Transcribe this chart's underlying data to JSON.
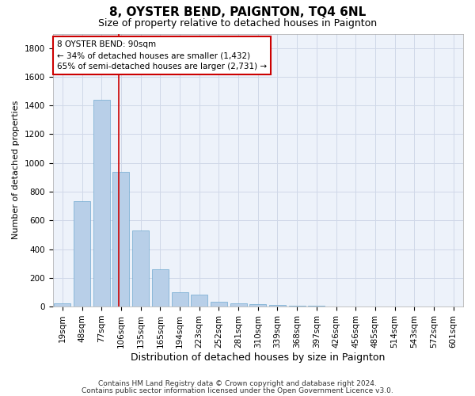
{
  "title": "8, OYSTER BEND, PAIGNTON, TQ4 6NL",
  "subtitle": "Size of property relative to detached houses in Paignton",
  "xlabel": "Distribution of detached houses by size in Paignton",
  "ylabel": "Number of detached properties",
  "footnote1": "Contains HM Land Registry data © Crown copyright and database right 2024.",
  "footnote2": "Contains public sector information licensed under the Open Government Licence v3.0.",
  "categories": [
    "19sqm",
    "48sqm",
    "77sqm",
    "106sqm",
    "135sqm",
    "165sqm",
    "194sqm",
    "223sqm",
    "252sqm",
    "281sqm",
    "310sqm",
    "339sqm",
    "368sqm",
    "397sqm",
    "426sqm",
    "456sqm",
    "485sqm",
    "514sqm",
    "543sqm",
    "572sqm",
    "601sqm"
  ],
  "values": [
    20,
    735,
    1440,
    940,
    530,
    260,
    100,
    85,
    35,
    20,
    15,
    10,
    6,
    5,
    2,
    2,
    1,
    1,
    1,
    1,
    1
  ],
  "bar_color": "#b8cfe8",
  "bar_edge_color": "#6fa8d0",
  "grid_color": "#d0d8e8",
  "annotation_line1": "8 OYSTER BEND: 90sqm",
  "annotation_line2": "← 34% of detached houses are smaller (1,432)",
  "annotation_line3": "65% of semi-detached houses are larger (2,731) →",
  "annotation_box_color": "#ffffff",
  "annotation_box_edge": "#cc0000",
  "vline_color": "#cc0000",
  "vline_x_index": 2.9,
  "ylim": [
    0,
    1900
  ],
  "yticks": [
    0,
    200,
    400,
    600,
    800,
    1000,
    1200,
    1400,
    1600,
    1800
  ],
  "background_color": "#edf2fa",
  "fig_background": "#ffffff",
  "title_fontsize": 11,
  "subtitle_fontsize": 9,
  "tick_fontsize": 7.5,
  "ylabel_fontsize": 8,
  "xlabel_fontsize": 9,
  "footnote_fontsize": 6.5
}
